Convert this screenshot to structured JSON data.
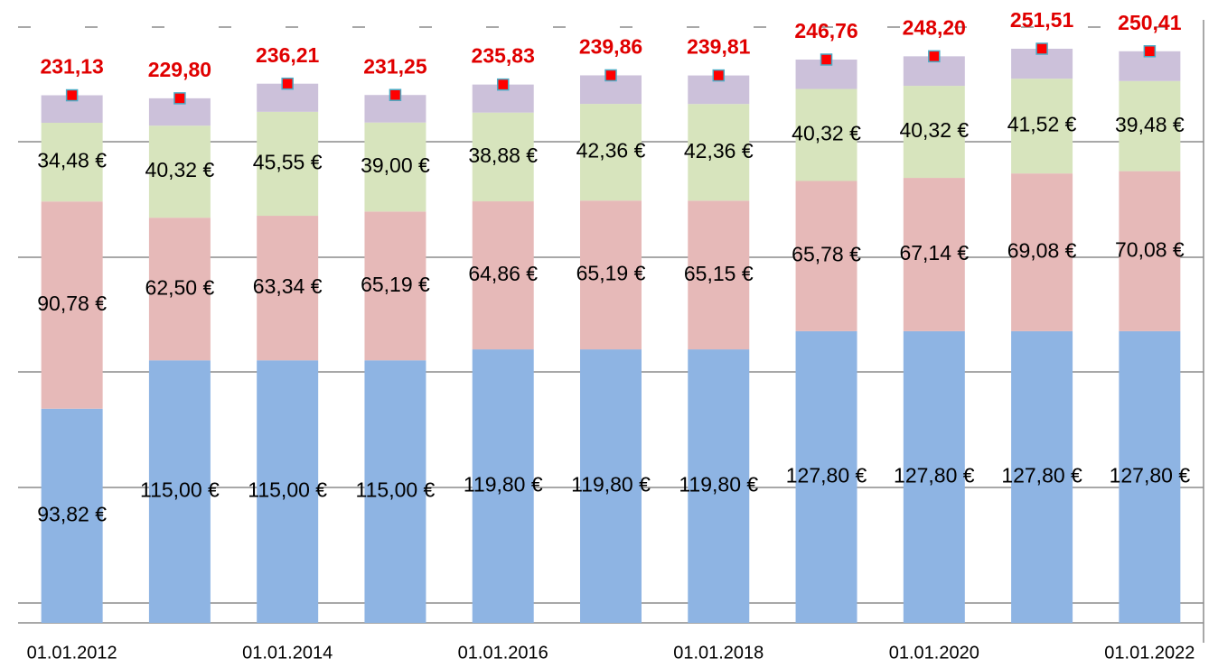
{
  "chart_data": {
    "type": "stacked_bar",
    "categories": [
      "01.01.2012",
      null,
      "01.01.2014",
      null,
      "01.01.2016",
      null,
      "01.01.2018",
      null,
      "01.01.2020",
      null,
      "01.01.2022"
    ],
    "ylim": [
      0,
      261
    ],
    "series": [
      {
        "color": "#8eb4e3",
        "values": [
          93.82,
          115.0,
          115.0,
          115.0,
          119.8,
          119.8,
          119.8,
          127.8,
          127.8,
          127.8,
          127.8
        ],
        "value_labels": [
          "93,82 €",
          "115,00 €",
          "115,00 €",
          "115,00 €",
          "119,80 €",
          "119,80 €",
          "119,80 €",
          "127,80 €",
          "127,80 €",
          "127,80 €",
          "127,80 €"
        ]
      },
      {
        "color": "#e6b9b8",
        "values": [
          90.78,
          62.5,
          63.34,
          65.19,
          64.86,
          65.19,
          65.15,
          65.78,
          67.14,
          69.08,
          70.08
        ],
        "value_labels": [
          "90,78 €",
          "62,50 €",
          "63,34 €",
          "65,19 €",
          "64,86 €",
          "65,19 €",
          "65,15 €",
          "65,78 €",
          "67,14 €",
          "69,08 €",
          "70,08 €"
        ]
      },
      {
        "color": "#d7e4bd",
        "values": [
          34.48,
          40.32,
          45.55,
          39.0,
          38.88,
          42.36,
          42.36,
          40.32,
          40.32,
          41.52,
          39.48
        ],
        "value_labels": [
          "34,48 €",
          "40,32 €",
          "45,55 €",
          "39,00 €",
          "38,88 €",
          "42,36 €",
          "42,36 €",
          "40,32 €",
          "40,32 €",
          "41,52 €",
          "39,48 €"
        ]
      },
      {
        "color": "#ccc1da",
        "values": [
          12.05,
          11.98,
          12.32,
          12.06,
          12.29,
          12.51,
          12.5,
          12.86,
          12.94,
          13.11,
          13.05
        ]
      }
    ],
    "totals": {
      "color": "#ff0000",
      "values": [
        231.13,
        229.8,
        236.21,
        231.25,
        235.83,
        239.86,
        239.81,
        246.76,
        248.2,
        251.51,
        250.41
      ],
      "value_labels": [
        "231,13",
        "229,80",
        "236,21",
        "231,25",
        "235,83",
        "239,86",
        "239,81",
        "246,76",
        "248,20",
        "251,51",
        "250,41"
      ]
    }
  }
}
